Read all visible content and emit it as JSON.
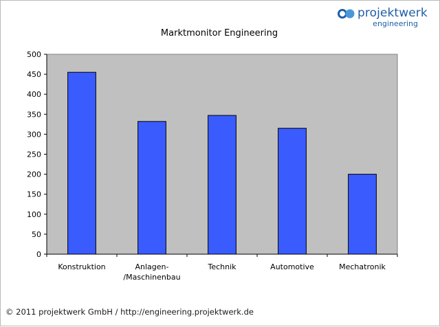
{
  "logo": {
    "name": "projektwerk",
    "sub": "engineering",
    "icon": "double-circle-icon",
    "color_dark": "#1f5ea8",
    "color_light": "#4b97db"
  },
  "footer": {
    "text": "© 2011 projektwerk GmbH / http://engineering.projektwerk.de"
  },
  "colors": {
    "bar_fill": "#3a5cff",
    "bar_stroke": "#000000",
    "plot_bg": "#c0c0c0"
  },
  "chart_data": {
    "type": "bar",
    "title": "Marktmonitor Engineering",
    "xlabel": "",
    "ylabel": "",
    "categories": [
      [
        "Konstruktion"
      ],
      [
        "Anlagen-",
        "/Maschinenbau"
      ],
      [
        "Technik"
      ],
      [
        "Automotive"
      ],
      [
        "Mechatronik"
      ]
    ],
    "values": [
      455,
      332,
      347,
      315,
      200
    ],
    "ylim": [
      0,
      500
    ],
    "yticks": [
      0,
      50,
      100,
      150,
      200,
      250,
      300,
      350,
      400,
      450,
      500
    ],
    "grid": false,
    "legend": "none"
  }
}
